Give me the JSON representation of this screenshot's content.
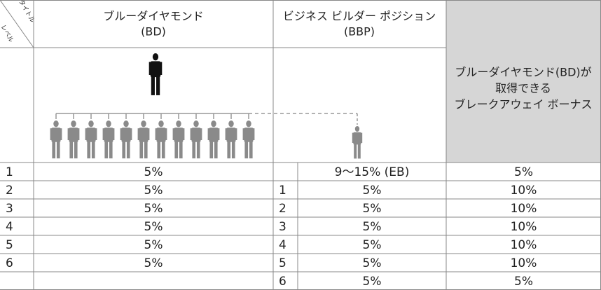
{
  "header": {
    "corner_title": "タイトル",
    "corner_level": "レベル",
    "bd": [
      "ブルーダイヤモンド",
      "(BD)"
    ],
    "bbp": [
      "ビジネス ビルダー ポジション",
      "(BBP)"
    ],
    "bonus": [
      "ブルーダイヤモンド(BD)が",
      "取得できる",
      "ブレークアウェイ ボーナス"
    ]
  },
  "table": {
    "rows": [
      [
        "1",
        "5%",
        null,
        "9～15% (EB)",
        "5%"
      ],
      [
        "2",
        "5%",
        "1",
        "5%",
        "10%"
      ],
      [
        "3",
        "5%",
        "2",
        "5%",
        "10%"
      ],
      [
        "4",
        "5%",
        "3",
        "5%",
        "10%"
      ],
      [
        "5",
        "5%",
        "4",
        "5%",
        "10%"
      ],
      [
        "6",
        "5%",
        "5",
        "5%",
        "10%"
      ],
      [
        null,
        null,
        "6",
        "5%",
        "5%"
      ]
    ]
  }
}
